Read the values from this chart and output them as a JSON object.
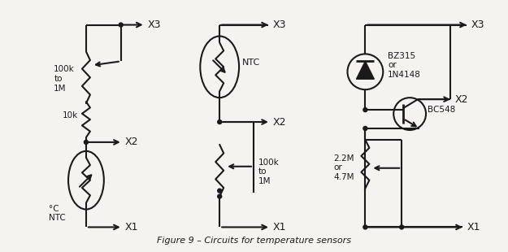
{
  "title": "Figure 9 – Circuits for temperature sensors",
  "bg_color": "#f5f3ef",
  "line_color": "#1a1a1a",
  "text_color": "#1a1a1a",
  "circuit1": {
    "label_pot": "100k\nto\n1M",
    "label_res": "10k",
    "label_ntc": "°C\nNTC",
    "x1_label": "X1",
    "x2_label": "X2",
    "x3_label": "X3"
  },
  "circuit2": {
    "label_ntc": "NTC",
    "label_pot": "100k\nto\n1M",
    "x1_label": "X1",
    "x2_label": "X2",
    "x3_label": "X3"
  },
  "circuit3": {
    "label_diode": "BZ315\nor\n1N4148",
    "label_transistor": "BC548",
    "label_pot": "2.2M\nor\n4.7M",
    "x1_label": "X1",
    "x2_label": "X2",
    "x3_label": "X3"
  }
}
